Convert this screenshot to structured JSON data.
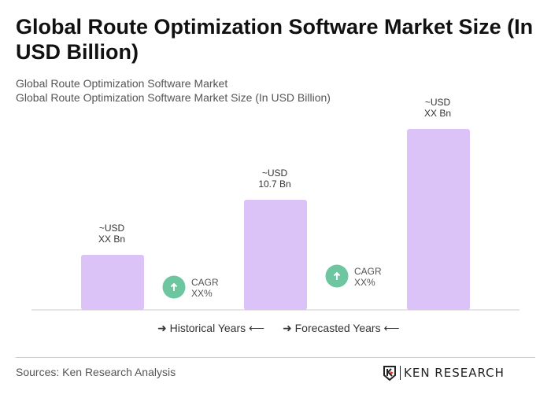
{
  "title": "Global Route Optimization Software Market Size (In USD Billion)",
  "subtitle1": "Global Route Optimization Software Market",
  "subtitle2": "Global Route Optimization Software Market Size (In USD Billion)",
  "chart_data": {
    "type": "bar",
    "values": [
      null,
      10.7,
      null
    ],
    "data_labels": [
      [
        "~USD",
        "XX Bn"
      ],
      [
        "~USD",
        "10.7 Bn"
      ],
      [
        "~USD",
        "XX Bn"
      ]
    ],
    "cagr": [
      {
        "label": "CAGR",
        "value": "XX%"
      },
      {
        "label": "CAGR",
        "value": "XX%"
      }
    ],
    "bar_color": "#dcc3f7",
    "cagr_color": "#6ec6a0",
    "legend": [
      "Historical Years",
      "Forecasted Years"
    ]
  },
  "source": "Sources: Ken Research Analysis",
  "logo": "KEN RESEARCH"
}
